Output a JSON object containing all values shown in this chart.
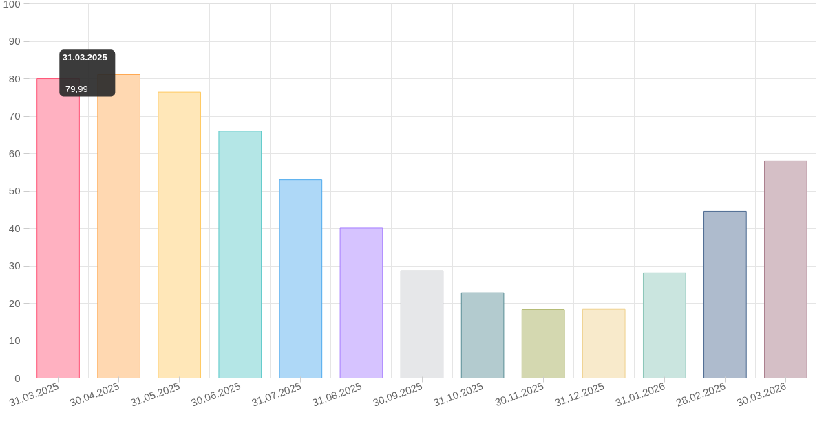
{
  "chart_data": {
    "type": "bar",
    "categories": [
      "31.03.2025",
      "30.04.2025",
      "31.05.2025",
      "30.06.2025",
      "31.07.2025",
      "31.08.2025",
      "30.09.2025",
      "31.10.2025",
      "30.11.2025",
      "31.12.2025",
      "31.01.2026",
      "28.02.2026",
      "30.03.2026"
    ],
    "values": [
      79.99,
      81.1,
      76.4,
      66.0,
      53.0,
      40.1,
      28.7,
      22.8,
      18.3,
      18.4,
      28.1,
      44.6,
      58.0
    ],
    "colors": [
      "#ffb1c1",
      "#ffd8b1",
      "#ffe7b8",
      "#b4e6e6",
      "#aed8f7",
      "#d6c3ff",
      "#e6e7e9",
      "#b3cbcf",
      "#d4d8b0",
      "#f8eacb",
      "#cae5df",
      "#aebbcd",
      "#d5bfc6"
    ],
    "ylim": [
      0,
      100
    ],
    "yticks": [
      0,
      10,
      20,
      30,
      40,
      50,
      60,
      70,
      80,
      90,
      100
    ],
    "grid": true,
    "annotations": [
      {
        "text": "31.03.2025",
        "x": "31.03.2025",
        "y": 79.99
      },
      {
        "text": "79,99",
        "x": "31.03.2025",
        "y": 79.99
      }
    ]
  }
}
